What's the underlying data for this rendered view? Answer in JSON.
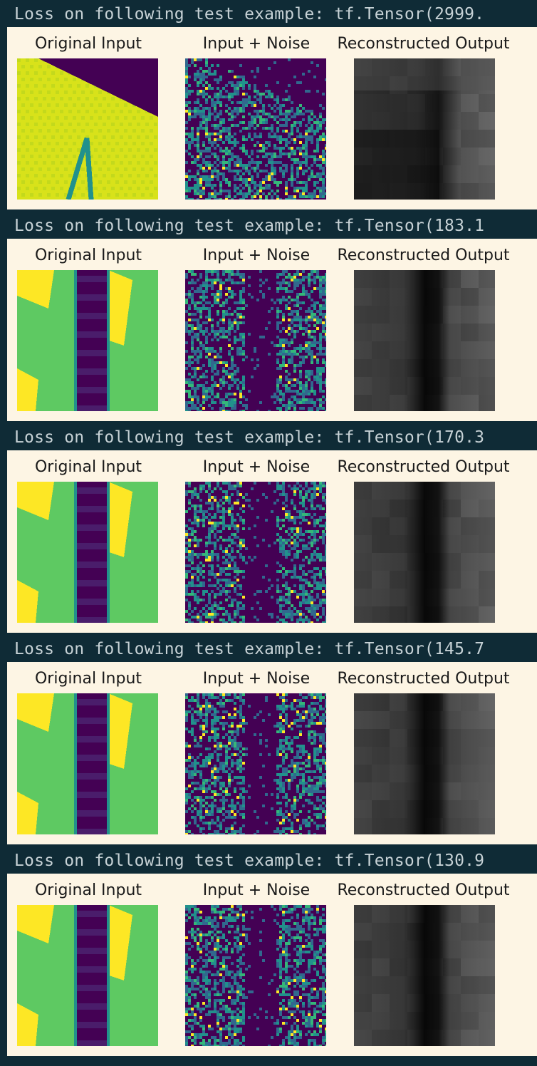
{
  "colors": {
    "notebook_background": "#0f2b36",
    "figure_background": "#fdf5e4",
    "log_text": "#c7d2d6",
    "viridis_low": "#440154",
    "viridis_mid": "#21918c",
    "viridis_green": "#5ec962",
    "viridis_high": "#fde725"
  },
  "panel_titles": [
    "Original Input",
    "Input + Noise",
    "Reconstructed Output"
  ],
  "outputs": [
    {
      "log_text": "Loss on following test example: tf.Tensor(2999.",
      "scene": "diagonal-with-line"
    },
    {
      "log_text": "Loss on following test example: tf.Tensor(183.1",
      "scene": "vertical-band"
    },
    {
      "log_text": "Loss on following test example: tf.Tensor(170.3",
      "scene": "vertical-band"
    },
    {
      "log_text": "Loss on following test example: tf.Tensor(145.7",
      "scene": "vertical-band"
    },
    {
      "log_text": "Loss on following test example: tf.Tensor(130.9",
      "scene": "vertical-band"
    }
  ]
}
